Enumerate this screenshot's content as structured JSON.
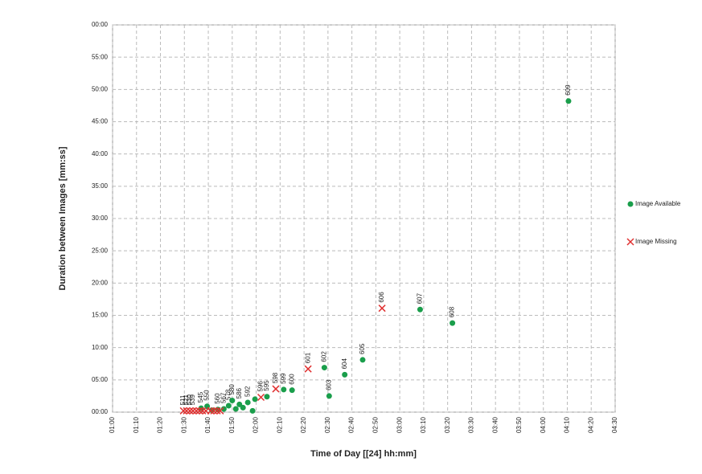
{
  "chart_data": {
    "type": "scatter",
    "x_label": "Time of Day [[24] hh:mm]",
    "y_label": "Duration between Images [mm:ss]",
    "xlim": [
      60,
      270
    ],
    "ylim": [
      0,
      60
    ],
    "xticks": [
      {
        "value": 60,
        "label": "01:00"
      },
      {
        "value": 70,
        "label": "01:10"
      },
      {
        "value": 80,
        "label": "01:20"
      },
      {
        "value": 90,
        "label": "01:30"
      },
      {
        "value": 100,
        "label": "01:40"
      },
      {
        "value": 110,
        "label": "01:50"
      },
      {
        "value": 120,
        "label": "02:00"
      },
      {
        "value": 130,
        "label": "02:10"
      },
      {
        "value": 140,
        "label": "02:20"
      },
      {
        "value": 150,
        "label": "02:30"
      },
      {
        "value": 160,
        "label": "02:40"
      },
      {
        "value": 170,
        "label": "02:50"
      },
      {
        "value": 180,
        "label": "03:00"
      },
      {
        "value": 190,
        "label": "03:10"
      },
      {
        "value": 200,
        "label": "03:20"
      },
      {
        "value": 210,
        "label": "03:30"
      },
      {
        "value": 220,
        "label": "03:40"
      },
      {
        "value": 230,
        "label": "03:50"
      },
      {
        "value": 240,
        "label": "04:00"
      },
      {
        "value": 250,
        "label": "04:10"
      },
      {
        "value": 260,
        "label": "04:20"
      },
      {
        "value": 270,
        "label": "04:30"
      }
    ],
    "yticks": [
      {
        "value": 0,
        "label": "00:00"
      },
      {
        "value": 5,
        "label": "05:00"
      },
      {
        "value": 10,
        "label": "10:00"
      },
      {
        "value": 15,
        "label": "15:00"
      },
      {
        "value": 20,
        "label": "20:00"
      },
      {
        "value": 25,
        "label": "25:00"
      },
      {
        "value": 30,
        "label": "30:00"
      },
      {
        "value": 35,
        "label": "35:00"
      },
      {
        "value": 40,
        "label": "40:00"
      },
      {
        "value": 45,
        "label": "45:00"
      },
      {
        "value": 50,
        "label": "50:00"
      },
      {
        "value": 55,
        "label": "55:00"
      },
      {
        "value": 60,
        "label": "00:00"
      }
    ],
    "grid": true,
    "legend": "right",
    "series": [
      {
        "name": "Image Available",
        "color": "#1a9e4b",
        "marker": "circle",
        "x": [
          97.0,
          99.5,
          101.5,
          104.0,
          106.5,
          108.5,
          110.0,
          111.5,
          113.0,
          114.5,
          116.5,
          118.5,
          119.5,
          124.5,
          131.5,
          135.0,
          148.5,
          150.5,
          157.0,
          164.5,
          188.5,
          202.0,
          250.5
        ],
        "values": [
          0.6,
          0.9,
          0.3,
          0.4,
          0.5,
          1.0,
          1.8,
          0.5,
          1.2,
          0.7,
          1.5,
          0.2,
          2.0,
          2.4,
          3.5,
          3.4,
          6.9,
          2.5,
          5.8,
          8.1,
          15.9,
          13.8,
          48.2
        ],
        "labels": [
          "545",
          "550",
          null,
          "560",
          "567",
          "578",
          "580",
          null,
          "586",
          null,
          "592",
          null,
          null,
          "595",
          "599",
          "600",
          "602",
          "603",
          "604",
          "605",
          "607",
          "608",
          "609"
        ]
      },
      {
        "name": "Image Missing",
        "color": "#e03030",
        "marker": "x",
        "x": [
          89.6,
          90.9,
          92.3,
          93.6,
          95.0,
          96.3,
          97.6,
          99.0,
          101.0,
          102.3,
          103.7,
          105.0,
          122.0,
          128.2,
          141.7,
          172.6
        ],
        "values": [
          0.2,
          0.2,
          0.2,
          0.2,
          0.2,
          0.2,
          0.2,
          0.2,
          0.2,
          0.2,
          0.2,
          0.2,
          2.3,
          3.6,
          6.7,
          16.1
        ],
        "labels": [
          "511",
          "521",
          "530",
          "539",
          null,
          null,
          null,
          null,
          null,
          null,
          null,
          null,
          "596",
          "598",
          "601",
          "606"
        ]
      }
    ]
  }
}
